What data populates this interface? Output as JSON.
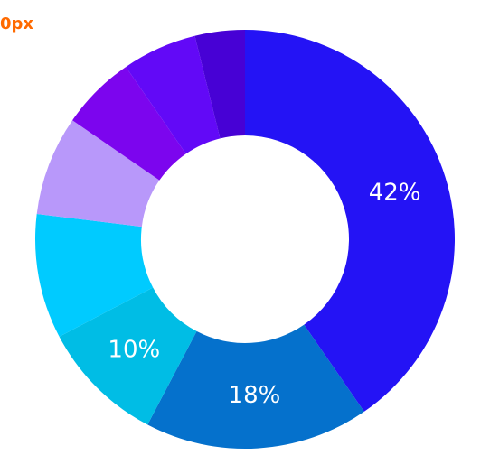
{
  "corner_text": "0px",
  "chart_data": {
    "type": "pie",
    "variant": "donut",
    "title": "",
    "slices": [
      {
        "value": 42,
        "label": "42%",
        "color": "#2413f5"
      },
      {
        "value": 18,
        "label": "18%",
        "color": "#0571cc"
      },
      {
        "value": 10,
        "label": "10%",
        "color": "#00bde5"
      },
      {
        "value": 10,
        "label": "",
        "color": "#00cbff"
      },
      {
        "value": 8,
        "label": "",
        "color": "#b898fa"
      },
      {
        "value": 6,
        "label": "",
        "color": "#7c05ee"
      },
      {
        "value": 6,
        "label": "",
        "color": "#6209f7"
      },
      {
        "value": 4,
        "label": "",
        "color": "#4701d5"
      }
    ]
  }
}
